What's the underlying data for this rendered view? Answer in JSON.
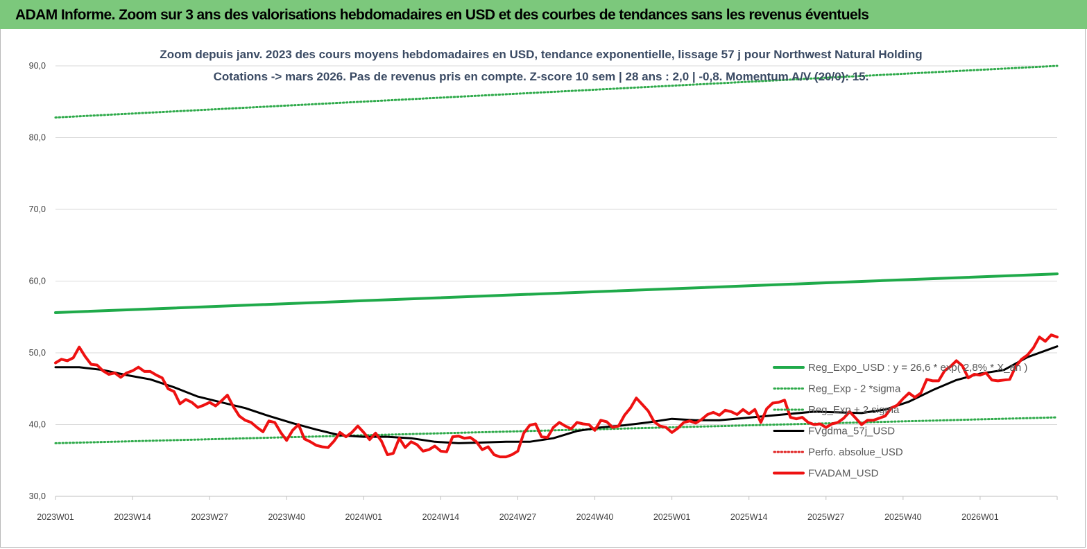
{
  "page": {
    "header_title": "ADAM Informe. Zoom sur 3 ans des valorisations hebdomadaires en USD et des courbes de tendances sans les revenus éventuels"
  },
  "chart_data": {
    "type": "line",
    "title": "Zoom depuis janv. 2023 des cours moyens hebdomadaires en USD, tendance exponentielle, lissage 57 j pour Northwest Natural Holding",
    "subtitle": "Cotations -> mars 2026. Pas de revenus pris en compte. Z-score 10 sem | 28 ans : 2,0 | -0,8. Momentum A/V (20/0): 15.",
    "xlabel": "",
    "ylabel": "",
    "ylim": [
      30,
      90
    ],
    "yticks": [
      "30,0",
      "40,0",
      "50,0",
      "60,0",
      "70,0",
      "80,0",
      "90,0"
    ],
    "x_tick_labels": [
      "2023W01",
      "2023W14",
      "2023W27",
      "2023W40",
      "2024W01",
      "2024W14",
      "2024W27",
      "2024W40",
      "2025W01",
      "2025W14",
      "2025W27",
      "2025W40",
      "2026W01"
    ],
    "x_count_weeks": 170,
    "grid": "horizontal",
    "legend_position": "right",
    "colors": {
      "reg_expo": "#1faa4a",
      "sigma": "#2eaa4a",
      "fvgdma": "#000000",
      "perfo": "#e02020",
      "fvadam": "#ee1111"
    },
    "series": [
      {
        "name": "Reg_Expo_USD : y = 26,6 * exp( 2,8% * X_an )",
        "style": "solid-thick",
        "color": "#1faa4a",
        "x": [
          0,
          169
        ],
        "values": [
          55.6,
          61.0
        ]
      },
      {
        "name": "Reg_Exp - 2 *sigma",
        "style": "dotted",
        "color": "#2eaa4a",
        "x": [
          0,
          169
        ],
        "values": [
          37.4,
          41.0
        ]
      },
      {
        "name": "Reg_Exp + 2 sigma",
        "style": "dotted",
        "color": "#2eaa4a",
        "x": [
          0,
          169
        ],
        "values": [
          82.8,
          90.0
        ]
      },
      {
        "name": "FVgdma_57j_USD",
        "style": "solid",
        "color": "#000000",
        "x": [
          0,
          4,
          8,
          12,
          16,
          20,
          24,
          28,
          32,
          36,
          40,
          44,
          48,
          52,
          56,
          60,
          64,
          68,
          72,
          76,
          80,
          84,
          88,
          92,
          96,
          100,
          104,
          108,
          112,
          116,
          120,
          124,
          128,
          132,
          136,
          140,
          144,
          148,
          152,
          156,
          160,
          164,
          169
        ],
        "values": [
          48.0,
          48.0,
          47.6,
          46.9,
          46.3,
          45.2,
          43.9,
          43.1,
          42.3,
          41.2,
          40.2,
          39.3,
          38.5,
          38.3,
          38.3,
          38.1,
          37.6,
          37.4,
          37.5,
          37.6,
          37.6,
          38.1,
          39.1,
          39.6,
          39.9,
          40.3,
          40.8,
          40.6,
          40.6,
          40.9,
          41.2,
          41.5,
          41.8,
          41.7,
          41.6,
          42.1,
          43.2,
          44.8,
          46.2,
          47.1,
          47.6,
          49.4,
          50.9
        ]
      },
      {
        "name": "Perfo. absolue_USD",
        "style": "dotted",
        "color": "#e02020",
        "x": [],
        "values": []
      },
      {
        "name": "FVADAM_USD",
        "style": "solid-thick",
        "color": "#ee1111",
        "x": [
          0,
          1,
          2,
          3,
          4,
          5,
          6,
          7,
          8,
          9,
          10,
          11,
          12,
          13,
          14,
          15,
          16,
          17,
          18,
          19,
          20,
          21,
          22,
          23,
          24,
          25,
          26,
          27,
          28,
          29,
          30,
          31,
          32,
          33,
          34,
          35,
          36,
          37,
          38,
          39,
          40,
          41,
          42,
          43,
          44,
          45,
          46,
          47,
          48,
          49,
          50,
          51,
          52,
          53,
          54,
          55,
          56,
          57,
          58,
          59,
          60,
          61,
          62,
          63,
          64,
          65,
          66,
          67,
          68,
          69,
          70,
          71,
          72,
          73,
          74,
          75,
          76,
          77,
          78,
          79,
          80,
          81,
          82,
          83,
          84,
          85,
          86,
          87,
          88,
          89,
          90,
          91,
          92,
          93,
          94,
          95,
          96,
          97,
          98,
          99,
          100,
          101,
          102,
          103,
          104,
          105,
          106,
          107,
          108,
          109,
          110,
          111,
          112,
          113,
          114,
          115,
          116,
          117,
          118,
          119,
          120,
          121,
          122,
          123,
          124,
          125,
          126,
          127,
          128,
          129,
          130,
          131,
          132,
          133,
          134,
          135,
          136,
          137,
          138,
          139,
          140,
          141,
          142,
          143,
          144,
          145,
          146,
          147,
          148,
          149,
          150,
          151,
          152,
          153,
          154,
          155,
          156,
          157,
          158,
          159,
          160,
          161,
          162,
          163,
          164,
          165,
          166,
          167,
          168,
          169
        ],
        "values": [
          48.6,
          49.1,
          48.9,
          49.3,
          50.8,
          49.5,
          48.4,
          48.3,
          47.5,
          47.0,
          47.2,
          46.6,
          47.2,
          47.5,
          48.0,
          47.4,
          47.4,
          46.9,
          46.5,
          45.0,
          44.6,
          42.9,
          43.5,
          43.1,
          42.4,
          42.7,
          43.1,
          42.6,
          43.3,
          44.1,
          42.5,
          41.2,
          40.6,
          40.3,
          39.6,
          39.0,
          40.5,
          40.3,
          38.9,
          37.8,
          39.2,
          40.0,
          38.0,
          37.6,
          37.1,
          36.9,
          36.8,
          37.7,
          38.9,
          38.3,
          38.9,
          39.8,
          38.9,
          37.9,
          38.8,
          37.7,
          35.8,
          36.0,
          38.1,
          36.8,
          37.6,
          37.2,
          36.3,
          36.5,
          37.0,
          36.3,
          36.2,
          38.3,
          38.4,
          38.1,
          38.2,
          37.6,
          36.5,
          36.9,
          35.8,
          35.5,
          35.5,
          35.8,
          36.3,
          38.8,
          39.9,
          40.1,
          38.3,
          38.2,
          39.6,
          40.3,
          39.8,
          39.4,
          40.3,
          40.1,
          40.0,
          39.2,
          40.6,
          40.4,
          39.6,
          39.8,
          41.3,
          42.3,
          43.7,
          42.8,
          41.9,
          40.4,
          39.8,
          39.6,
          38.9,
          39.5,
          40.3,
          40.5,
          40.2,
          40.7,
          41.4,
          41.7,
          41.3,
          42.0,
          41.8,
          41.4,
          42.1,
          41.5,
          42.1,
          40.3,
          42.2,
          43.0,
          43.1,
          43.4,
          41.0,
          40.8,
          41.0,
          40.3,
          40.0,
          40.1,
          39.6,
          40.1,
          40.3,
          40.9,
          41.8,
          40.9,
          40.0,
          40.6,
          40.6,
          40.9,
          41.2,
          42.3,
          42.7,
          43.6,
          44.4,
          43.8,
          44.4,
          46.3,
          46.1,
          46.1,
          47.5,
          48.1,
          48.9,
          48.2,
          46.5,
          47.0,
          46.9,
          47.2,
          46.2,
          46.1,
          46.2,
          46.3,
          48.1,
          49.1,
          49.7,
          50.7,
          52.2,
          51.6,
          52.5,
          52.2
        ]
      }
    ]
  }
}
